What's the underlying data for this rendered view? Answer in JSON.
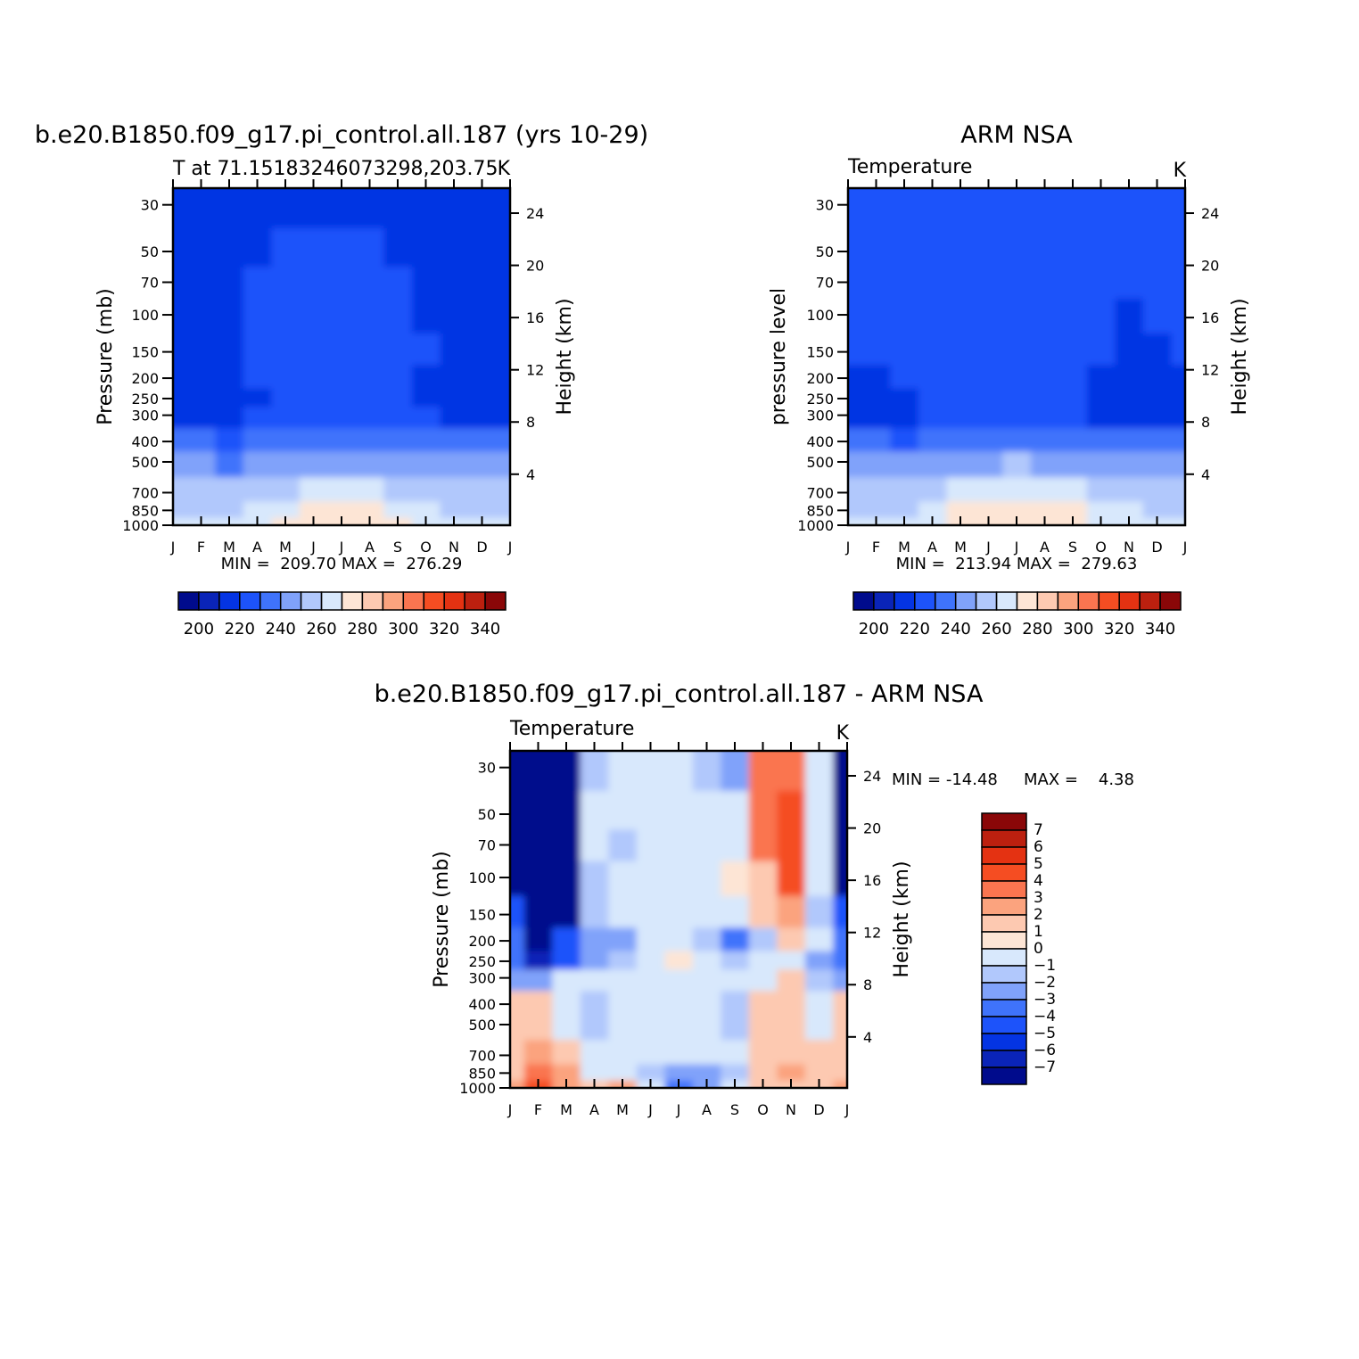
{
  "chart_data": [
    {
      "type": "heatmap",
      "title": "b.e20.B1850.f09_g17.pi_control.all.187 (yrs 10-29)",
      "subtitle_left": "T at 71.15183246073298,203.75",
      "subtitle_right": "K",
      "ylabel": "Pressure (mb)",
      "ylabel_right": "Height (km)",
      "x_ticks": [
        "J",
        "F",
        "M",
        "A",
        "M",
        "J",
        "J",
        "A",
        "S",
        "O",
        "N",
        "D",
        "J"
      ],
      "y_ticks": [
        30,
        50,
        70,
        100,
        150,
        200,
        250,
        300,
        400,
        500,
        700,
        850,
        1000
      ],
      "y_scale": "log",
      "ylim": [
        1000,
        25
      ],
      "height_ticks": [
        24,
        20,
        16,
        12,
        8,
        4
      ],
      "stats": "MIN =  209.70 MAX =  276.29",
      "colorbar_ticks": [
        200,
        220,
        240,
        260,
        280,
        300,
        320,
        340
      ],
      "levels": [
        190,
        200,
        210,
        220,
        230,
        240,
        250,
        260,
        270,
        280,
        290,
        300,
        310,
        320,
        330,
        340,
        350
      ],
      "colors": [
        "#000b8c",
        "#0a24b8",
        "#0434e3",
        "#1d53fa",
        "#3f73fb",
        "#80a2fa",
        "#b1c8fc",
        "#d8e8fc",
        "#fde5d5",
        "#fdc9b1",
        "#fba37e",
        "#fa7550",
        "#f54d22",
        "#e43212",
        "#bc200f",
        "#8a0708"
      ],
      "model_values": [
        [
          215,
          215,
          215,
          216,
          217,
          218,
          218,
          217,
          216,
          215,
          215,
          215,
          215
        ],
        [
          216,
          216,
          216,
          219,
          220,
          221,
          221,
          221,
          218,
          217,
          216,
          216,
          216
        ],
        [
          218,
          218,
          218,
          220,
          221,
          222,
          222,
          222,
          220,
          218,
          218,
          218,
          218
        ],
        [
          216,
          216,
          217,
          220,
          221,
          222,
          222,
          222,
          221,
          219,
          218,
          217,
          216
        ],
        [
          216,
          216,
          217,
          220,
          221,
          222,
          222,
          222,
          221,
          220,
          219,
          217,
          216
        ],
        [
          215,
          215,
          216,
          220,
          221,
          222,
          222,
          222,
          221,
          219,
          216,
          216,
          215
        ],
        [
          214,
          214,
          215,
          219,
          220,
          221,
          221,
          221,
          220,
          217,
          215,
          214,
          214
        ],
        [
          218,
          218,
          218,
          221,
          222,
          223,
          223,
          223,
          222,
          220,
          218,
          218,
          218
        ],
        [
          230,
          230,
          229,
          232,
          234,
          236,
          237,
          236,
          234,
          232,
          230,
          230,
          230
        ],
        [
          240,
          240,
          239,
          242,
          245,
          248,
          249,
          248,
          245,
          242,
          240,
          240,
          240
        ],
        [
          252,
          252,
          251,
          254,
          258,
          262,
          264,
          263,
          258,
          254,
          252,
          252,
          252
        ],
        [
          258,
          258,
          258,
          262,
          268,
          272,
          274,
          272,
          268,
          262,
          259,
          258,
          258
        ],
        [
          260,
          260,
          260,
          264,
          270,
          275,
          276,
          274,
          270,
          264,
          261,
          260,
          260
        ]
      ],
      "obs_values": [
        [
          222,
          222,
          222,
          223,
          224,
          225,
          226,
          225,
          224,
          222,
          221,
          221,
          222
        ],
        [
          222,
          222,
          222,
          223,
          224,
          225,
          225,
          225,
          224,
          222,
          221,
          221,
          222
        ],
        [
          221,
          221,
          222,
          223,
          224,
          225,
          225,
          225,
          224,
          221,
          220,
          220,
          221
        ],
        [
          221,
          221,
          222,
          223,
          224,
          225,
          225,
          225,
          224,
          220,
          219,
          220,
          221
        ],
        [
          220,
          220,
          221,
          223,
          224,
          225,
          225,
          225,
          224,
          220,
          219,
          219,
          220
        ],
        [
          218,
          218,
          220,
          222,
          223,
          224,
          224,
          224,
          222,
          219,
          217,
          217,
          218
        ],
        [
          215,
          215,
          218,
          222,
          223,
          224,
          224,
          224,
          222,
          217,
          215,
          215,
          215
        ],
        [
          218,
          218,
          219,
          222,
          223,
          224,
          224,
          224,
          223,
          219,
          217,
          217,
          218
        ],
        [
          230,
          230,
          229,
          232,
          234,
          236,
          237,
          236,
          234,
          232,
          230,
          230,
          230
        ],
        [
          241,
          241,
          240,
          243,
          246,
          249,
          250,
          249,
          246,
          243,
          241,
          241,
          241
        ],
        [
          254,
          254,
          253,
          256,
          260,
          264,
          266,
          265,
          260,
          256,
          254,
          253,
          254
        ],
        [
          259,
          259,
          259,
          263,
          270,
          275,
          277,
          275,
          270,
          264,
          260,
          259,
          259
        ],
        [
          261,
          261,
          261,
          265,
          272,
          277,
          279,
          277,
          272,
          266,
          262,
          261,
          261
        ]
      ]
    },
    {
      "type": "heatmap",
      "title": "ARM NSA",
      "subtitle_left": "Temperature",
      "subtitle_right": "K",
      "ylabel": "pressure level",
      "ylabel_right": "Height (km)",
      "x_ticks": [
        "J",
        "F",
        "M",
        "A",
        "M",
        "J",
        "J",
        "A",
        "S",
        "O",
        "N",
        "D",
        "J"
      ],
      "y_ticks": [
        30,
        50,
        70,
        100,
        150,
        200,
        250,
        300,
        400,
        500,
        700,
        850,
        1000
      ],
      "y_scale": "log",
      "ylim": [
        1000,
        25
      ],
      "height_ticks": [
        24,
        20,
        16,
        12,
        8,
        4
      ],
      "stats": "MIN =  213.94 MAX =  279.63",
      "colorbar_ticks": [
        200,
        220,
        240,
        260,
        280,
        300,
        320,
        340
      ]
    },
    {
      "type": "heatmap",
      "title": "b.e20.B1850.f09_g17.pi_control.all.187 - ARM NSA",
      "subtitle_left": "Temperature",
      "subtitle_right": "K",
      "ylabel": "Pressure (mb)",
      "ylabel_right": "Height (km)",
      "x_ticks": [
        "J",
        "F",
        "M",
        "A",
        "M",
        "J",
        "J",
        "A",
        "S",
        "O",
        "N",
        "D",
        "J"
      ],
      "y_ticks": [
        30,
        50,
        70,
        100,
        150,
        200,
        250,
        300,
        400,
        500,
        700,
        850,
        1000
      ],
      "y_scale": "log",
      "ylim": [
        1000,
        25
      ],
      "height_ticks": [
        24,
        20,
        16,
        12,
        8,
        4
      ],
      "stats_min": "MIN = -14.48",
      "stats_max": "MAX =    4.38",
      "levels": [
        -8,
        -7,
        -6,
        -5,
        -4,
        -3,
        -2,
        -1,
        0,
        1,
        2,
        3,
        4,
        5,
        6,
        7,
        8
      ],
      "colorbar_ticks": [
        7,
        6,
        5,
        4,
        3,
        2,
        1,
        0,
        -1,
        -2,
        -3,
        -4,
        -5,
        -6,
        -7
      ],
      "colors": [
        "#000b8c",
        "#0a24b8",
        "#0434e3",
        "#1d53fa",
        "#3f73fb",
        "#80a2fa",
        "#b1c8fc",
        "#d8e8fc",
        "#fde5d5",
        "#fdc9b1",
        "#fba37e",
        "#fa7550",
        "#f54d22",
        "#e43212",
        "#bc200f",
        "#8a0708"
      ],
      "diff_values": [
        [
          -12,
          -14,
          -9,
          -2,
          -1,
          -1,
          -1,
          -2,
          -3,
          3,
          3,
          -1,
          -12
        ],
        [
          -12,
          -14,
          -9,
          -1,
          -1,
          -1,
          -1,
          -1,
          -1,
          3,
          4,
          -1,
          -12
        ],
        [
          -12,
          -14,
          -9,
          -1,
          -2,
          -1,
          -1,
          -1,
          -1,
          3,
          4,
          -1,
          -12
        ],
        [
          -8,
          -14,
          -9,
          -2,
          -1,
          -1,
          -1,
          -1,
          0.5,
          1,
          4,
          -1,
          -8
        ],
        [
          -5,
          -14,
          -8,
          -2,
          -1,
          -1,
          -1,
          -1,
          -1,
          1,
          2.5,
          -2,
          -5
        ],
        [
          -4,
          -13,
          -5,
          -3,
          -3,
          -1,
          -1,
          -2,
          -4,
          -2,
          1,
          -1,
          -4
        ],
        [
          -4,
          -7,
          -5,
          -3,
          -2,
          -1,
          0.5,
          -1,
          -2,
          -1,
          -1,
          -3,
          -4
        ],
        [
          -3,
          -3,
          -1,
          -1,
          -1,
          -1,
          -1,
          -1,
          -1,
          -1,
          1,
          -2,
          -3
        ],
        [
          1,
          1,
          -1,
          -2,
          -1,
          -1,
          -1,
          -1,
          -2,
          1,
          1,
          -1,
          1
        ],
        [
          1,
          1,
          -1,
          -2,
          -1,
          -1,
          -1,
          -1,
          -2,
          1,
          1,
          -1,
          1
        ],
        [
          1,
          2,
          1,
          -1,
          -1,
          -1,
          -1,
          -1,
          -1,
          1,
          1.5,
          1,
          1
        ],
        [
          1,
          3,
          2,
          -1,
          -1,
          -2,
          -3,
          -3,
          -2,
          1,
          2.5,
          1,
          1
        ],
        [
          2,
          4,
          2,
          1,
          2,
          -1,
          -4,
          -3,
          -1,
          1,
          1,
          1,
          2
        ]
      ]
    }
  ]
}
